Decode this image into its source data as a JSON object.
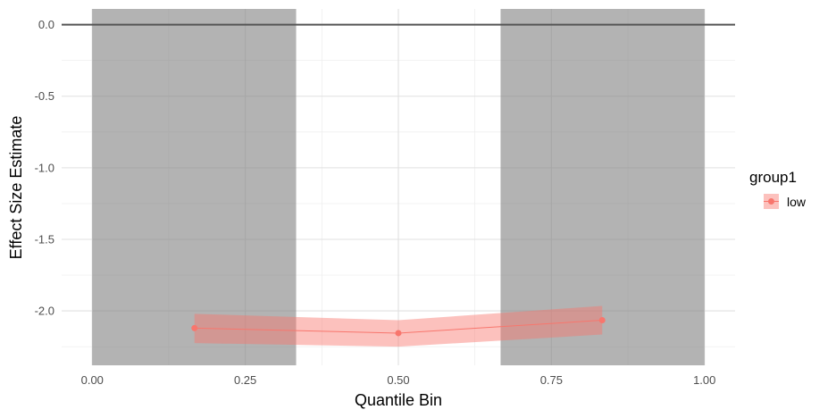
{
  "chart_data": {
    "type": "line",
    "title": "",
    "xlabel": "Quantile Bin",
    "ylabel": "Effect Size Estimate",
    "xlim": [
      -0.05,
      1.05
    ],
    "ylim": [
      -2.38,
      0.11
    ],
    "x_ticks": [
      "0.00",
      "0.25",
      "0.50",
      "0.75",
      "1.00"
    ],
    "y_ticks": [
      "0.0",
      "-0.5",
      "-1.0",
      "-1.5",
      "-2.0"
    ],
    "x_tick_values": [
      0,
      0.25,
      0.5,
      0.75,
      1.0
    ],
    "y_tick_values": [
      0,
      -0.5,
      -1.0,
      -1.5,
      -2.0
    ],
    "grid": true,
    "reference_line": 0,
    "shaded_regions": [
      {
        "x_start": 0.0,
        "x_end": 0.333
      },
      {
        "x_start": 0.667,
        "x_end": 1.0
      }
    ],
    "legend": {
      "title": "group1",
      "position": "right"
    },
    "series": [
      {
        "name": "low",
        "color": "#F8766D",
        "x": [
          0.167,
          0.5,
          0.833
        ],
        "y": [
          -2.12,
          -2.155,
          -2.065
        ],
        "ci_lower": [
          -2.225,
          -2.25,
          -2.165
        ],
        "ci_upper": [
          -2.02,
          -2.065,
          -1.965
        ]
      }
    ]
  }
}
